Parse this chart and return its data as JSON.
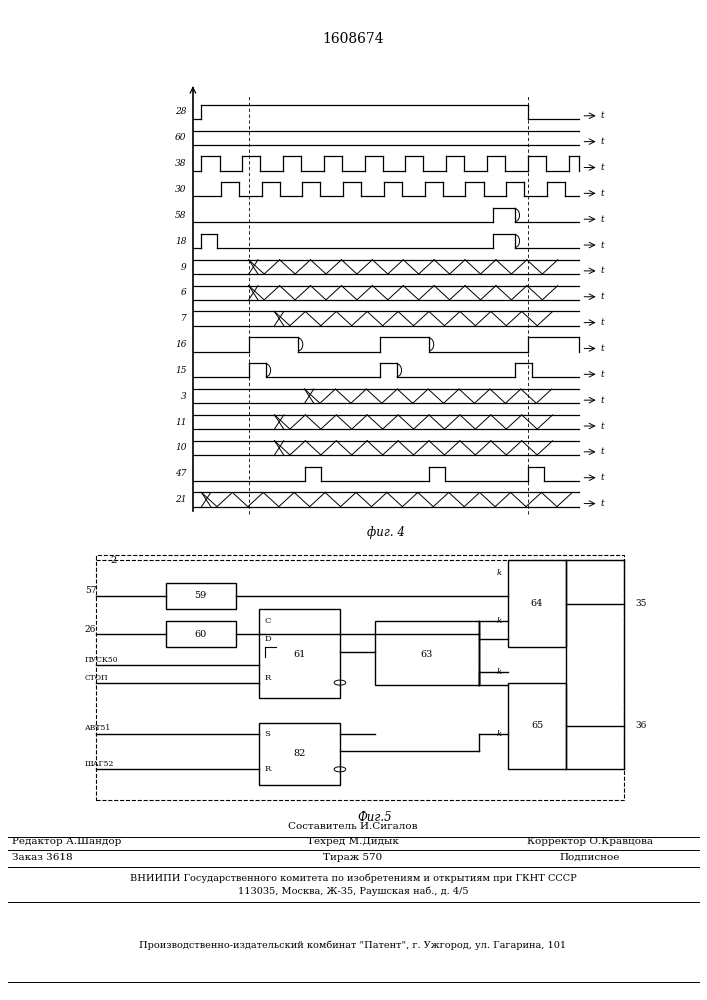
{
  "title": "1608674",
  "fig4_label": "фиг. 4",
  "fig5_label": "Фиг.5",
  "footer_composer": "Составитель И.Сигалов",
  "footer_editor": "Редактор А.Шандор",
  "footer_tech": "Техред М.Дидык",
  "footer_corrector": "Корректор О.Кравцова",
  "footer_order": "Заказ 3618",
  "footer_circulation": "Тираж 570",
  "footer_subscription": "Подписное",
  "footer_vniip": "ВНИИПИ Государственного комитета по изобретениям и открытиям при ГКНТ СССР",
  "footer_address": "113035, Москва, Ж-35, Раушская наб., д. 4/5",
  "footer_plant": "Производственно-издательский комбинат \"Патент\", г. Ужгород, ул. Гагарина, 101",
  "bg_color": "#ffffff",
  "signal_labels": [
    "28",
    "60",
    "38",
    "30",
    "58",
    "18",
    "9",
    "6",
    "7",
    "16",
    "15",
    "3",
    "11",
    "10",
    "47",
    "21"
  ]
}
